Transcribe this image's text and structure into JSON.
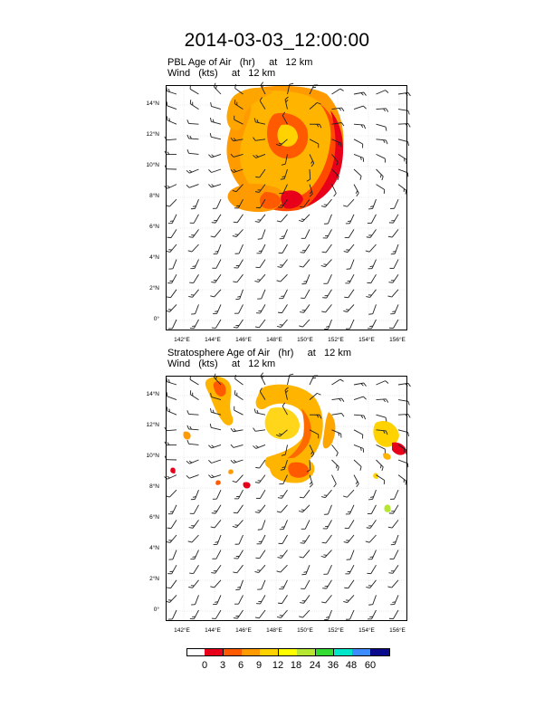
{
  "title": "2014-03-03_12:00:00",
  "panels": [
    {
      "title_line1": "PBL Age of Air   (hr)     at   12 km",
      "title_line2": "Wind   (kts)     at   12 km"
    },
    {
      "title_line1": "Stratosphere Age of Air   (hr)     at   12 km",
      "title_line2": "Wind   (kts)     at   12 km"
    }
  ],
  "lat_labels": [
    "14°N",
    "12°N",
    "10°N",
    "8°N",
    "6°N",
    "4°N",
    "2°N",
    "0°"
  ],
  "lon_labels": [
    "142°E",
    "144°E",
    "146°E",
    "148°E",
    "150°E",
    "152°E",
    "154°E",
    "156°E"
  ],
  "colorbar": {
    "labels": [
      "0",
      "3",
      "6",
      "9",
      "12",
      "18",
      "24",
      "36",
      "48",
      "60"
    ],
    "colors": [
      "#ffffff",
      "#e8001a",
      "#ff5a00",
      "#ff9a00",
      "#ffd200",
      "#ffff00",
      "#b4e632",
      "#32dc32",
      "#00e6c8",
      "#3c8cff",
      "#0a0a8c"
    ]
  }
}
